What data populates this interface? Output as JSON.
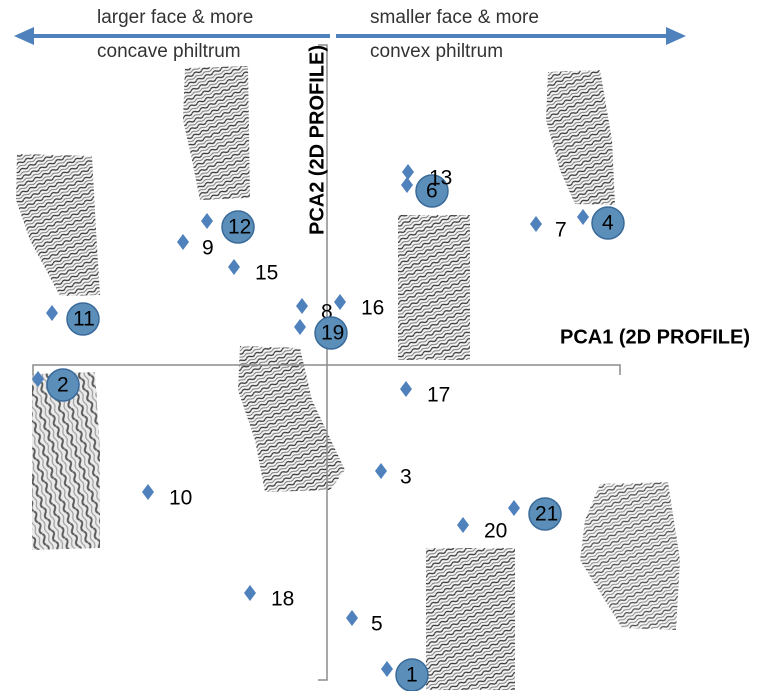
{
  "chart_data": {
    "type": "scatter",
    "x_label": "PCA1 (2D PROFILE)",
    "y_label": "PCA2 (2D PROFILE)",
    "annotations": [
      [
        "larger face & more",
        "concave philtrum"
      ],
      [
        "smaller face & more",
        "convex philtrum"
      ]
    ],
    "xlim": [
      -300,
      300
    ],
    "ylim": [
      -320,
      320
    ],
    "color": "#4f81bd",
    "highlight_color": "#5b8fba",
    "points": [
      {
        "label": "1",
        "x": 60,
        "y": -304,
        "highlight": true
      },
      {
        "label": "2",
        "x": -289,
        "y": -14,
        "highlight": true
      },
      {
        "label": "3",
        "x": 54,
        "y": -106,
        "highlight": false
      },
      {
        "label": "4",
        "x": 256,
        "y": 148,
        "highlight": true
      },
      {
        "label": "5",
        "x": 25,
        "y": -253,
        "highlight": false
      },
      {
        "label": "6",
        "x": 80,
        "y": 180,
        "highlight": true
      },
      {
        "label": "7",
        "x": 209,
        "y": 141,
        "highlight": false
      },
      {
        "label": "8",
        "x": -25,
        "y": 59,
        "highlight": false
      },
      {
        "label": "9",
        "x": -144,
        "y": 123,
        "highlight": false
      },
      {
        "label": "10",
        "x": -179,
        "y": -127,
        "highlight": false
      },
      {
        "label": "11",
        "x": -275,
        "y": 52,
        "highlight": true
      },
      {
        "label": "12",
        "x": -120,
        "y": 144,
        "highlight": true
      },
      {
        "label": "13",
        "x": 81,
        "y": 193,
        "highlight": false
      },
      {
        "label": "15",
        "x": -93,
        "y": 98,
        "highlight": false
      },
      {
        "label": "16",
        "x": 13,
        "y": 63,
        "highlight": false
      },
      {
        "label": "17",
        "x": 79,
        "y": -24,
        "highlight": false
      },
      {
        "label": "18",
        "x": -77,
        "y": -228,
        "highlight": false
      },
      {
        "label": "19",
        "x": -27,
        "y": 38,
        "highlight": true
      },
      {
        "label": "20",
        "x": 136,
        "y": -160,
        "highlight": false
      },
      {
        "label": "21",
        "x": 187,
        "y": -143,
        "highlight": true
      }
    ]
  }
}
